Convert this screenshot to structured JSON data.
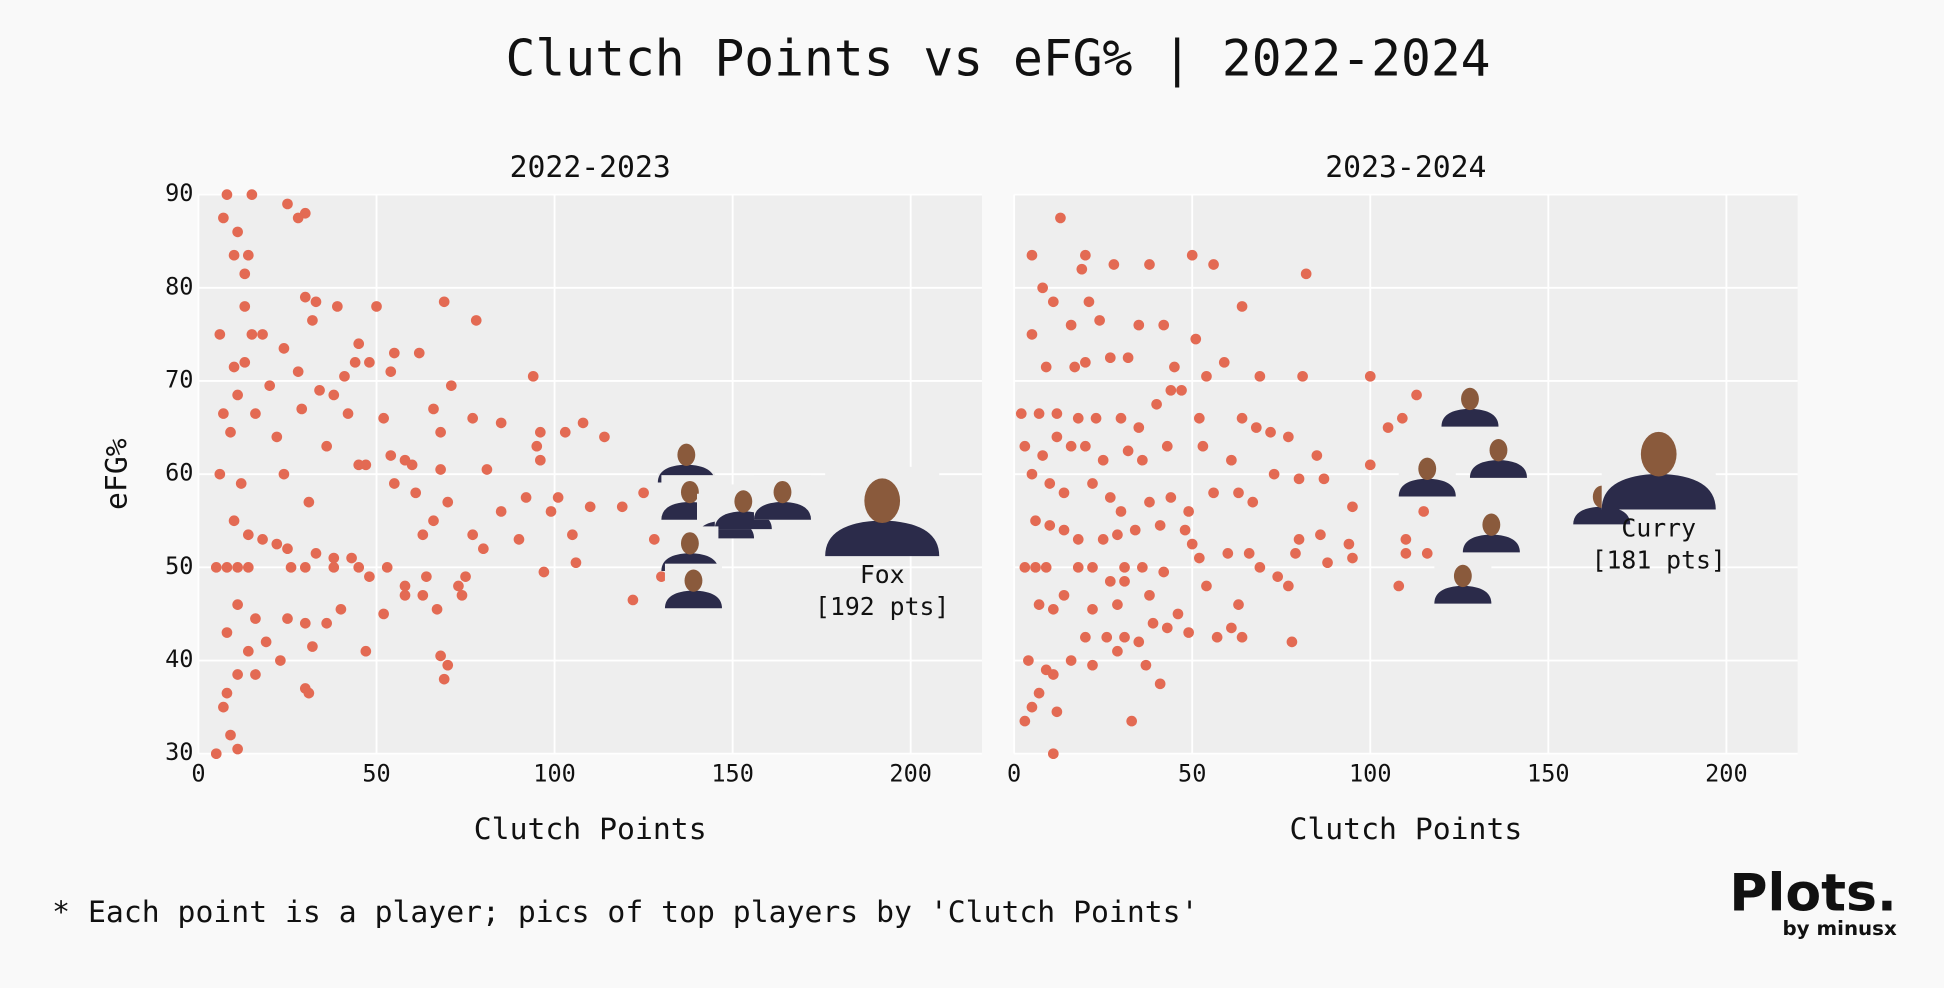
{
  "title": "Clutch Points vs eFG% | 2022-2024",
  "footnote": "* Each point is a player; pics of top players by 'Clutch Points'",
  "logo": {
    "text": "Plots.",
    "sub": "by minusx"
  },
  "chart_data": [
    {
      "type": "scatter",
      "title": "2022-2023",
      "x_label": "Clutch Points",
      "y_label": "eFG%",
      "color": "#e36a53",
      "grid": true,
      "ytick_labels": true,
      "xlim": [
        0,
        220
      ],
      "ylim": [
        30,
        90
      ],
      "xticks": [
        0,
        50,
        100,
        150,
        200
      ],
      "yticks": [
        30,
        40,
        50,
        60,
        70,
        80,
        90
      ],
      "x": [
        8,
        15,
        25,
        30,
        28,
        7,
        11,
        14,
        10,
        13,
        30,
        33,
        39,
        50,
        69,
        78,
        13,
        32,
        6,
        15,
        18,
        45,
        55,
        24,
        62,
        10,
        13,
        28,
        48,
        54,
        44,
        41,
        71,
        20,
        34,
        38,
        11,
        7,
        16,
        29,
        42,
        52,
        66,
        77,
        85,
        96,
        103,
        108,
        114,
        68,
        94,
        9,
        22,
        36,
        47,
        54,
        58,
        60,
        68,
        81,
        95,
        96,
        6,
        12,
        24,
        31,
        45,
        55,
        61,
        63,
        66,
        70,
        77,
        85,
        92,
        99,
        101,
        105,
        110,
        119,
        125,
        128,
        10,
        14,
        18,
        22,
        25,
        33,
        38,
        43,
        5,
        8,
        11,
        14,
        26,
        30,
        38,
        45,
        48,
        53,
        58,
        64,
        73,
        75,
        80,
        90,
        97,
        106,
        122,
        130,
        58,
        63,
        67,
        74,
        52,
        40,
        36,
        30,
        25,
        11,
        16,
        19,
        14,
        8,
        23,
        32,
        47,
        68,
        70,
        69,
        30,
        31,
        16,
        11,
        7,
        8,
        9,
        11,
        5
      ],
      "values": [
        90,
        90,
        89,
        88,
        87.5,
        87.5,
        86,
        83.5,
        83.5,
        81.5,
        79,
        78.5,
        78,
        78,
        78.5,
        76.5,
        78,
        76.5,
        75,
        75,
        75,
        74,
        73,
        73.5,
        73,
        71.5,
        72,
        71,
        72,
        71,
        72,
        70.5,
        69.5,
        69.5,
        69,
        68.5,
        68.5,
        66.5,
        66.5,
        67,
        66.5,
        66,
        67,
        66,
        65.5,
        64.5,
        64.5,
        65.5,
        64,
        64.5,
        70.5,
        64.5,
        64,
        63,
        61,
        62,
        61.5,
        61,
        60.5,
        60.5,
        63,
        61.5,
        60,
        59,
        60,
        57,
        61,
        59,
        58,
        53.5,
        55,
        57,
        53.5,
        56,
        57.5,
        56,
        57.5,
        53.5,
        56.5,
        56.5,
        58,
        53,
        55,
        53.5,
        53,
        52.5,
        52,
        51.5,
        51,
        51,
        50,
        50,
        50,
        50,
        50,
        50,
        50,
        50,
        49,
        50,
        48,
        49,
        48,
        49,
        52,
        53,
        49.5,
        50.5,
        46.5,
        49,
        47,
        47,
        45.5,
        47,
        45,
        45.5,
        44,
        44,
        44.5,
        46,
        44.5,
        42,
        41,
        43,
        40,
        41.5,
        41,
        40.5,
        39.5,
        38,
        37,
        36.5,
        38.5,
        38.5,
        35,
        36.5,
        32,
        30.5,
        30
      ],
      "highlights": {
        "x": [
          137,
          138,
          148,
          153,
          164,
          138,
          139,
          192
        ],
        "values": [
          61.5,
          57.5,
          55.5,
          56.5,
          57.5,
          52,
          48,
          56
        ],
        "labels": [
          null,
          null,
          null,
          null,
          null,
          null,
          null,
          "Fox"
        ],
        "details": [
          null,
          null,
          null,
          null,
          null,
          null,
          null,
          "[192 pts]"
        ]
      }
    },
    {
      "type": "scatter",
      "title": "2023-2024",
      "x_label": "Clutch Points",
      "color": "#e36a53",
      "grid": true,
      "ytick_labels": false,
      "xlim": [
        0,
        220
      ],
      "ylim": [
        30,
        90
      ],
      "xticks": [
        0,
        50,
        100,
        150,
        200
      ],
      "yticks": [
        30,
        40,
        50,
        60,
        70,
        80,
        90
      ],
      "x": [
        5,
        13,
        19,
        20,
        28,
        38,
        50,
        56,
        82,
        8,
        11,
        21,
        24,
        16,
        35,
        42,
        51,
        64,
        5,
        9,
        17,
        20,
        27,
        32,
        45,
        54,
        59,
        69,
        81,
        100,
        113,
        2,
        7,
        12,
        18,
        23,
        30,
        35,
        40,
        44,
        47,
        52,
        64,
        68,
        72,
        77,
        85,
        105,
        109,
        3,
        8,
        12,
        16,
        20,
        25,
        32,
        36,
        43,
        53,
        61,
        73,
        80,
        87,
        100,
        5,
        10,
        14,
        22,
        27,
        30,
        38,
        44,
        49,
        56,
        63,
        67,
        95,
        114,
        115,
        6,
        10,
        14,
        18,
        25,
        29,
        34,
        41,
        48,
        50,
        60,
        66,
        80,
        86,
        94,
        110,
        116,
        3,
        6,
        9,
        18,
        22,
        31,
        36,
        42,
        52,
        69,
        74,
        79,
        88,
        95,
        110,
        108,
        27,
        31,
        14,
        7,
        11,
        22,
        29,
        38,
        46,
        54,
        63,
        77,
        20,
        26,
        31,
        35,
        39,
        43,
        49,
        57,
        61,
        64,
        78,
        4,
        9,
        16,
        22,
        29,
        37,
        41,
        11,
        7,
        5,
        12,
        3,
        33,
        11
      ],
      "values": [
        83.5,
        87.5,
        82,
        83.5,
        82.5,
        82.5,
        83.5,
        82.5,
        81.5,
        80,
        78.5,
        78.5,
        76.5,
        76,
        76,
        76,
        74.5,
        78,
        75,
        71.5,
        71.5,
        72,
        72.5,
        72.5,
        71.5,
        70.5,
        72,
        70.5,
        70.5,
        70.5,
        68.5,
        66.5,
        66.5,
        66.5,
        66,
        66,
        66,
        65,
        67.5,
        69,
        69,
        66,
        66,
        65,
        64.5,
        64,
        62,
        65,
        66,
        63,
        62,
        64,
        63,
        63,
        61.5,
        62.5,
        61.5,
        63,
        63,
        61.5,
        60,
        59.5,
        59.5,
        61,
        60,
        59,
        58,
        59,
        57.5,
        56,
        57,
        57.5,
        56,
        58,
        58,
        57,
        56.5,
        59.5,
        56,
        55,
        54.5,
        54,
        53,
        53,
        53.5,
        54,
        54.5,
        54,
        52.5,
        51.5,
        51.5,
        53,
        53.5,
        52.5,
        53,
        51.5,
        50,
        50,
        50,
        50,
        50,
        50,
        50,
        49.5,
        51,
        50,
        49,
        51.5,
        50.5,
        51,
        51.5,
        48,
        48.5,
        48.5,
        47,
        46,
        45.5,
        45.5,
        46,
        47,
        45,
        48,
        46,
        48,
        42.5,
        42.5,
        42.5,
        42,
        44,
        43.5,
        43,
        42.5,
        43.5,
        42.5,
        42,
        40,
        39,
        40,
        39.5,
        41,
        39.5,
        37.5,
        38.5,
        36.5,
        35,
        34.5,
        33.5,
        33.5,
        30
      ],
      "highlights": {
        "x": [
          128,
          136,
          116,
          165,
          181,
          134,
          126
        ],
        "values": [
          67.5,
          62,
          60,
          57,
          61,
          54,
          48.5
        ],
        "labels": [
          null,
          null,
          null,
          null,
          "Curry",
          null,
          null
        ],
        "details": [
          null,
          null,
          null,
          null,
          "[181 pts]",
          null,
          null
        ]
      }
    }
  ]
}
